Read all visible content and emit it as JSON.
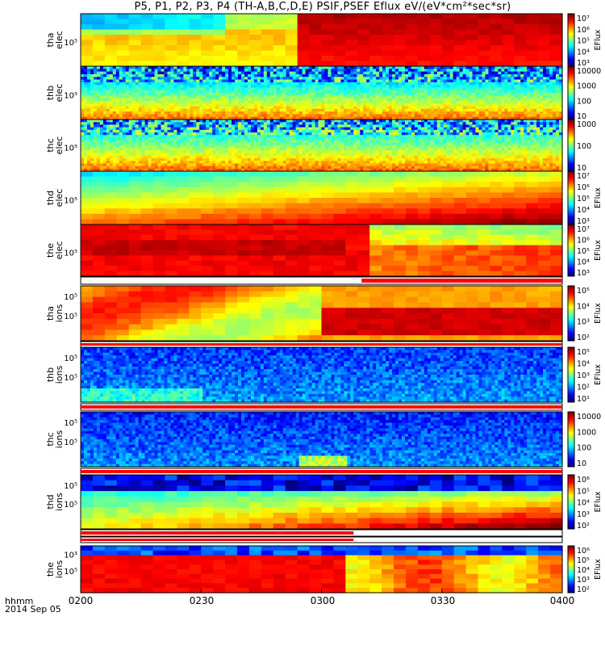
{
  "title": "P5, P1, P2, P3, P4 (TH-A,B,C,D,E) PSIF,PSEF Eflux eV/(eV*cm²*sec*sr)",
  "footer": {
    "time_label": "hhmm",
    "date_label": "2014 Sep 05"
  },
  "colors": {
    "bar_red": "#ff0000",
    "bar_black": "#000000",
    "frame": "#000000"
  },
  "chart_data": {
    "type": "heatmap",
    "x_axis": {
      "range": [
        "0200",
        "0400"
      ],
      "ticks": [
        "0200",
        "0230",
        "0300",
        "0330",
        "0400"
      ],
      "label": "hhmm"
    },
    "grid": false,
    "panels": [
      {
        "name": "thaelec",
        "label": [
          "tha",
          "elec"
        ],
        "ytick": "10⁵",
        "cbar_ticks": [
          "10⁷",
          "10⁶",
          "10⁵",
          "10⁴",
          "10³"
        ],
        "cbar_label": "EFlux",
        "pattern": "tha_elec",
        "seed": 1
      },
      {
        "name": "thbelec",
        "label": [
          "thb",
          "elec"
        ],
        "ytick": "10⁵",
        "cbar_ticks": [
          "10000",
          "1000",
          "100",
          "10"
        ],
        "cbar_label": "",
        "pattern": "thb_elec",
        "seed": 2
      },
      {
        "name": "thcelec",
        "label": [
          "thc",
          "elec"
        ],
        "ytick": "10⁵",
        "cbar_ticks": [
          "1000",
          "100",
          "10"
        ],
        "cbar_label": "",
        "pattern": "thc_elec",
        "seed": 3
      },
      {
        "name": "thdelec",
        "label": [
          "thd",
          "elec"
        ],
        "ytick": "10⁵",
        "cbar_ticks": [
          "10⁷",
          "10⁶",
          "10⁵",
          "10⁴",
          "10³"
        ],
        "cbar_label": "EFlux",
        "pattern": "thd_elec",
        "seed": 4
      },
      {
        "name": "theelec",
        "label": [
          "the",
          "elec"
        ],
        "ytick": "10⁵",
        "cbar_ticks": [
          "10⁷",
          "10⁶",
          "10⁵",
          "10⁴",
          "10³"
        ],
        "cbar_label": "EFlux",
        "pattern": "the_elec",
        "seed": 5
      },
      {
        "name": "thaions",
        "label": [
          "tha",
          "ions"
        ],
        "ytick": "10⁵",
        "ytick2": "10⁵",
        "cbar_ticks": [
          "10⁵",
          "10⁴",
          "10³",
          "10²"
        ],
        "cbar_label": "EFlux",
        "pattern": "tha_ions",
        "seed": 6
      },
      {
        "name": "thbions",
        "label": [
          "thb",
          "ions"
        ],
        "ytick": "10⁵",
        "ytick2": "10⁵",
        "cbar_ticks": [
          "10⁵",
          "10⁴",
          "10³",
          "10²",
          "10¹"
        ],
        "cbar_label": "EFlux",
        "pattern": "thb_ions",
        "seed": 7
      },
      {
        "name": "thcions",
        "label": [
          "thc",
          "ions"
        ],
        "ytick": "10⁵",
        "ytick2": "10⁵",
        "cbar_ticks": [
          "10000",
          "1000",
          "100",
          "10"
        ],
        "cbar_label": "",
        "pattern": "thc_ions",
        "seed": 8
      },
      {
        "name": "thdions",
        "label": [
          "thd",
          "ions"
        ],
        "ytick": "10⁵",
        "ytick2": "10⁵",
        "cbar_ticks": [
          "10⁶",
          "10⁵",
          "10⁴",
          "10³",
          "10²"
        ],
        "cbar_label": "EFlux",
        "pattern": "thd_ions",
        "seed": 9
      },
      {
        "name": "theions",
        "label": [
          "the",
          "ions"
        ],
        "ytick": "10⁵",
        "ytick2": "10³",
        "cbar_ticks": [
          "10⁶",
          "10⁵",
          "10⁴",
          "10³",
          "10²"
        ],
        "cbar_label": "EFlux",
        "pattern": "the_ions",
        "seed": 10
      }
    ],
    "mode_bars": [
      {
        "name": "the",
        "red_from": "0310",
        "red_to": "0400"
      },
      {
        "name": "tha",
        "red_from": "0200",
        "red_to": "0400"
      },
      {
        "name": "thb",
        "red_from": "0200",
        "red_to": "0400"
      },
      {
        "name": "thc",
        "red_from": "0200",
        "red_to": "0400"
      },
      {
        "name": "thd",
        "red_from": "0200",
        "red_to": "0308"
      },
      {
        "name": "the2",
        "red_from": "0200",
        "red_to": "0308"
      }
    ]
  }
}
